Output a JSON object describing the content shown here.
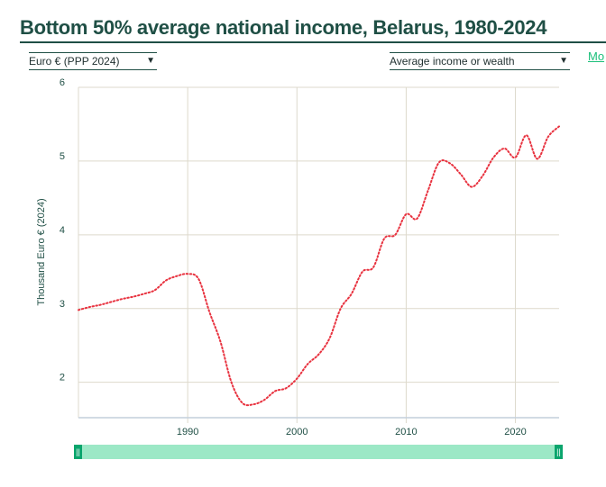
{
  "header": {
    "title": "Bottom 50% average national income, Belarus, 1980-2024",
    "more_link": "Mo"
  },
  "controls": {
    "currency": "Euro € (PPP 2024)",
    "metric": "Average income or wealth"
  },
  "colors": {
    "line": "#e8323f",
    "slider": "#9ce8c6",
    "handle": "#0aa56d",
    "title": "#1f4f45"
  },
  "chart_data": {
    "type": "line",
    "title": "Bottom 50% average national income, Belarus, 1980-2024",
    "xlabel": "",
    "ylabel": "Thousand Euro € (2024)",
    "xlim": [
      1980,
      2024
    ],
    "ylim": [
      1.52,
      6
    ],
    "x_ticks": [
      1990,
      2000,
      2010,
      2020
    ],
    "y_ticks": [
      2,
      3,
      4,
      5,
      6
    ],
    "grid": true,
    "series": [
      {
        "name": "Bottom 50%",
        "x": [
          1980,
          1981,
          1982,
          1983,
          1984,
          1985,
          1986,
          1987,
          1988,
          1989,
          1990,
          1991,
          1992,
          1993,
          1994,
          1995,
          1996,
          1997,
          1998,
          1999,
          2000,
          2001,
          2002,
          2003,
          2004,
          2005,
          2006,
          2007,
          2008,
          2009,
          2010,
          2011,
          2012,
          2013,
          2014,
          2015,
          2016,
          2017,
          2018,
          2019,
          2020,
          2021,
          2022,
          2023,
          2024
        ],
        "values": [
          2.98,
          3.02,
          3.05,
          3.09,
          3.13,
          3.16,
          3.2,
          3.25,
          3.38,
          3.44,
          3.47,
          3.4,
          2.95,
          2.55,
          2.0,
          1.72,
          1.7,
          1.76,
          1.88,
          1.92,
          2.05,
          2.25,
          2.38,
          2.6,
          3.0,
          3.2,
          3.5,
          3.56,
          3.95,
          4.0,
          4.28,
          4.22,
          4.6,
          4.98,
          4.97,
          4.82,
          4.65,
          4.8,
          5.05,
          5.17,
          5.05,
          5.35,
          5.03,
          5.33,
          5.47
        ]
      }
    ]
  }
}
